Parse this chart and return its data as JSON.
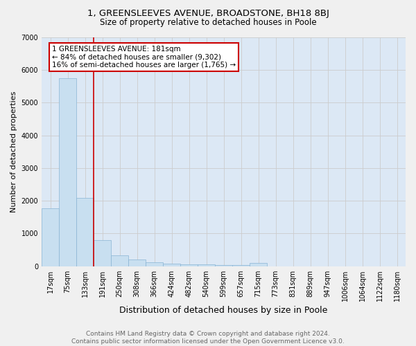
{
  "title_line1": "1, GREENSLEEVES AVENUE, BROADSTONE, BH18 8BJ",
  "title_line2": "Size of property relative to detached houses in Poole",
  "xlabel": "Distribution of detached houses by size in Poole",
  "ylabel": "Number of detached properties",
  "bar_labels": [
    "17sqm",
    "75sqm",
    "133sqm",
    "191sqm",
    "250sqm",
    "308sqm",
    "366sqm",
    "424sqm",
    "482sqm",
    "540sqm",
    "599sqm",
    "657sqm",
    "715sqm",
    "773sqm",
    "831sqm",
    "889sqm",
    "947sqm",
    "1006sqm",
    "1064sqm",
    "1122sqm",
    "1180sqm"
  ],
  "bar_values": [
    1780,
    5750,
    2080,
    790,
    340,
    200,
    110,
    85,
    65,
    55,
    45,
    40,
    100,
    0,
    0,
    0,
    0,
    0,
    0,
    0,
    0
  ],
  "bar_color": "#c8dff0",
  "bar_edge_color": "#8ab4d4",
  "vline_color": "#cc0000",
  "annotation_text": "1 GREENSLEEVES AVENUE: 181sqm\n← 84% of detached houses are smaller (9,302)\n16% of semi-detached houses are larger (1,765) →",
  "annotation_box_color": "#ffffff",
  "annotation_box_edge_color": "#cc0000",
  "ylim": [
    0,
    7000
  ],
  "yticks": [
    0,
    1000,
    2000,
    3000,
    4000,
    5000,
    6000,
    7000
  ],
  "grid_color": "#cccccc",
  "bg_color": "#dce8f5",
  "footnote": "Contains HM Land Registry data © Crown copyright and database right 2024.\nContains public sector information licensed under the Open Government Licence v3.0.",
  "title_fontsize": 9.5,
  "subtitle_fontsize": 8.5,
  "xlabel_fontsize": 9,
  "ylabel_fontsize": 8,
  "tick_fontsize": 7,
  "annotation_fontsize": 7.5,
  "footnote_fontsize": 6.5
}
